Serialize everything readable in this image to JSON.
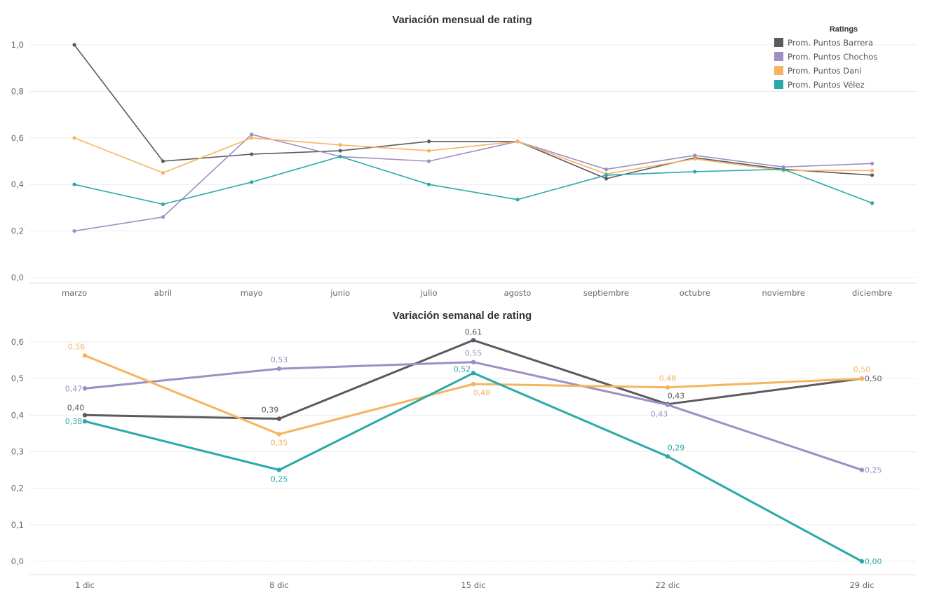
{
  "legend": {
    "title": "Ratings",
    "placement": "top-right"
  },
  "colors": {
    "Prom. Puntos Barrera": "#5b5b5f",
    "Prom. Puntos Chochos": "#9d8fc5",
    "Prom. Puntos Dani": "#f5b461",
    "Prom. Puntos Vélez": "#2aa9a9"
  },
  "chart_data": [
    {
      "type": "line",
      "title": "Variación mensual de rating",
      "xlabel": "",
      "ylabel": "",
      "ylim": [
        0,
        1.0
      ],
      "yticks": [
        "0,0",
        "0,2",
        "0,4",
        "0,6",
        "0,8",
        "1,0"
      ],
      "categories": [
        "marzo",
        "abril",
        "mayo",
        "junio",
        "julio",
        "agosto",
        "septiembre",
        "octubre",
        "noviembre",
        "diciembre"
      ],
      "series": [
        {
          "name": "Prom. Puntos Barrera",
          "values": [
            1.0,
            0.5,
            0.53,
            0.545,
            0.585,
            0.585,
            0.425,
            0.515,
            0.465,
            0.44
          ]
        },
        {
          "name": "Prom. Puntos Chochos",
          "values": [
            0.2,
            0.26,
            0.615,
            0.52,
            0.5,
            0.585,
            0.465,
            0.525,
            0.475,
            0.49
          ]
        },
        {
          "name": "Prom. Puntos Dani",
          "values": [
            0.6,
            0.45,
            0.6,
            0.57,
            0.545,
            0.585,
            0.445,
            0.51,
            0.46,
            0.46
          ]
        },
        {
          "name": "Prom. Puntos Vélez",
          "values": [
            0.4,
            0.315,
            0.41,
            0.52,
            0.4,
            0.335,
            0.44,
            0.455,
            0.465,
            0.32
          ]
        }
      ]
    },
    {
      "type": "line",
      "title": "Variación semanal de rating",
      "xlabel": "",
      "ylabel": "",
      "ylim": [
        0,
        0.6
      ],
      "yticks": [
        "0,0",
        "0,1",
        "0,2",
        "0,3",
        "0,4",
        "0,5",
        "0,6"
      ],
      "categories": [
        "1 dic",
        "8 dic",
        "15 dic",
        "22 dic",
        "29 dic"
      ],
      "series": [
        {
          "name": "Prom. Puntos Barrera",
          "values": [
            0.4,
            0.39,
            0.605,
            0.43,
            0.5
          ],
          "labels": [
            "0,40",
            "0,39",
            "0,61",
            "0,43",
            "0,50"
          ]
        },
        {
          "name": "Prom. Puntos Chochos",
          "values": [
            0.473,
            0.527,
            0.545,
            0.428,
            0.25
          ],
          "labels": [
            "0,47",
            "0,53",
            "0,55",
            "0,43",
            "0,25"
          ]
        },
        {
          "name": "Prom. Puntos Dani",
          "values": [
            0.563,
            0.348,
            0.485,
            0.476,
            0.5
          ],
          "labels": [
            "0,56",
            "0,35",
            "0,48",
            "0,48",
            "0,50"
          ]
        },
        {
          "name": "Prom. Puntos Vélez",
          "values": [
            0.383,
            0.25,
            0.515,
            0.287,
            0.0
          ],
          "labels": [
            "0,38",
            "0,25",
            "0,52",
            "0,29",
            "0,00"
          ]
        }
      ]
    }
  ]
}
